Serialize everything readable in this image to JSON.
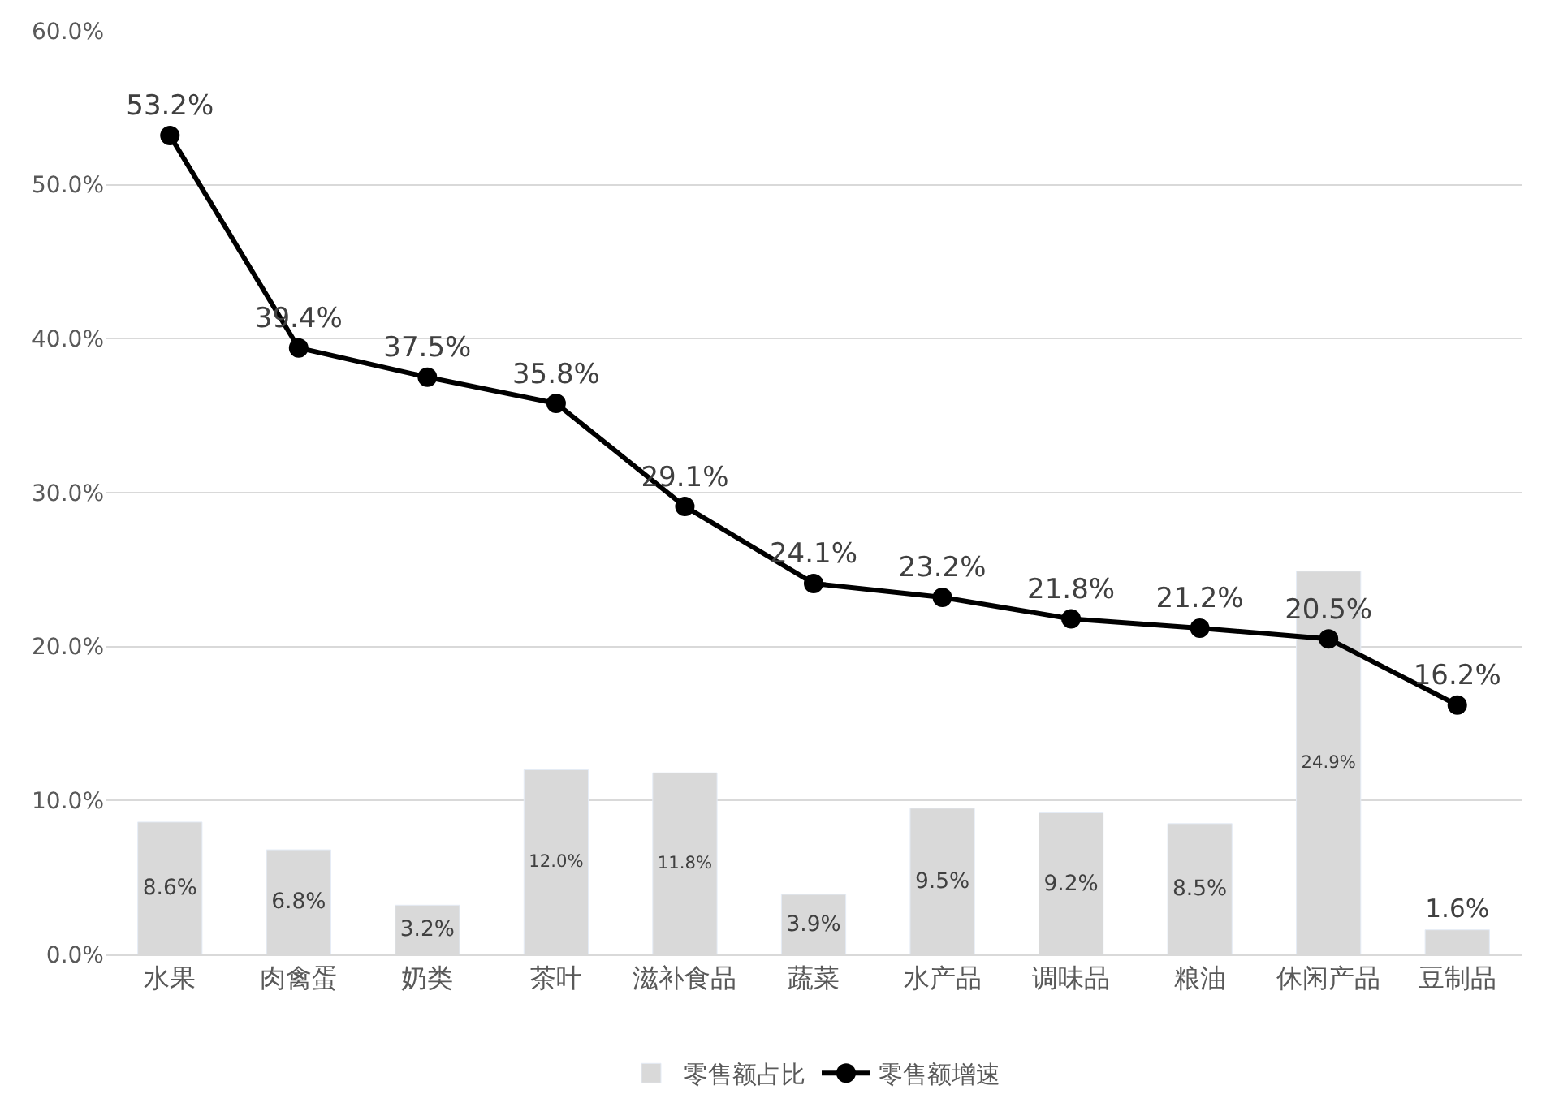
{
  "chart_data": {
    "type": "bar",
    "categories": [
      "水果",
      "肉禽蛋",
      "奶类",
      "茶叶",
      "滋补食品",
      "蔬菜",
      "水产品",
      "调味品",
      "粮油",
      "休闲产品",
      "豆制品"
    ],
    "series": [
      {
        "name": "零售额占比",
        "color": "#d9d9d9",
        "values": [
          8.6,
          6.8,
          3.2,
          12.0,
          11.8,
          3.9,
          9.5,
          9.2,
          8.5,
          24.9,
          1.6
        ],
        "value_labels": [
          "8.6%",
          "6.8%",
          "3.2%",
          "12.0%",
          "11.8%",
          "3.9%",
          "9.5%",
          "9.2%",
          "8.5%",
          "24.9%",
          "1.6%"
        ]
      },
      {
        "name": "零售额增速",
        "type": "line",
        "color": "#000000",
        "marker": "circle",
        "values": [
          53.2,
          39.4,
          37.5,
          35.8,
          29.1,
          24.1,
          23.2,
          21.8,
          21.2,
          20.5,
          16.2
        ],
        "value_labels": [
          "53.2%",
          "39.4%",
          "37.5%",
          "35.8%",
          "29.1%",
          "24.1%",
          "23.2%",
          "21.8%",
          "21.2%",
          "20.5%",
          "16.2%"
        ]
      }
    ],
    "ylim": [
      0,
      60
    ],
    "yticks": [
      {
        "value": 0,
        "label": "0.0%"
      },
      {
        "value": 10,
        "label": "10.0%"
      },
      {
        "value": 20,
        "label": "20.0%"
      },
      {
        "value": 30,
        "label": "30.0%"
      },
      {
        "value": 40,
        "label": "40.0%"
      },
      {
        "value": 50,
        "label": "50.0%"
      },
      {
        "value": 60,
        "label": "60.0%"
      }
    ],
    "grid": "y",
    "legend": "bottom"
  }
}
